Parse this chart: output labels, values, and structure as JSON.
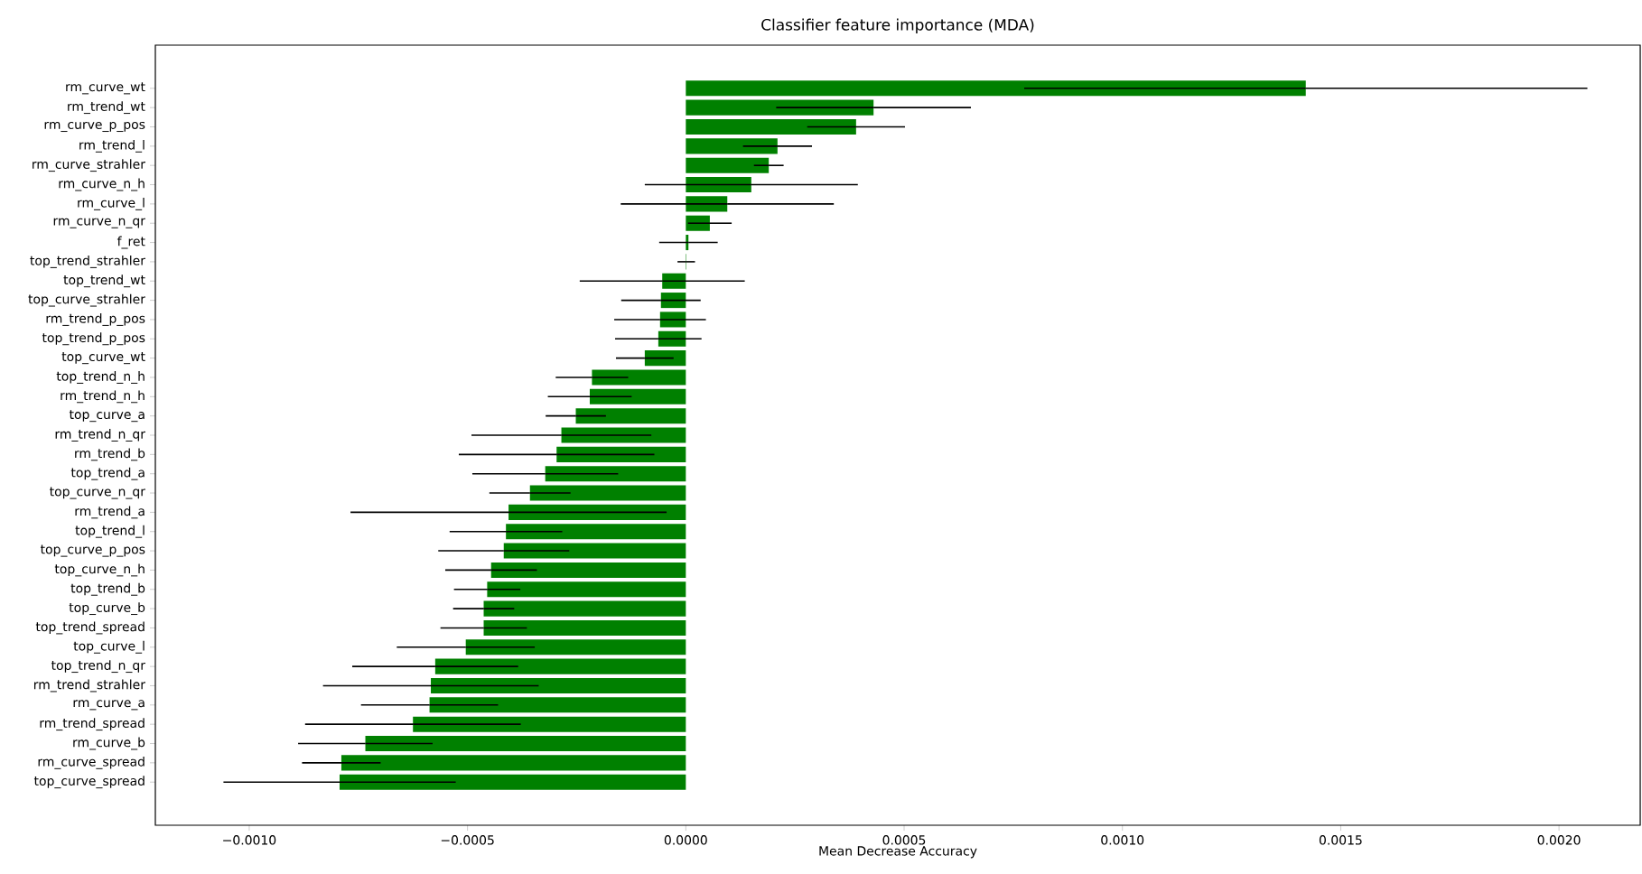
{
  "chart_data": {
    "type": "bar",
    "orientation": "horizontal",
    "title": "Classifier feature importance (MDA)",
    "xlabel": "Mean Decrease Accuracy",
    "categories": [
      "rm_curve_wt",
      "rm_trend_wt",
      "rm_curve_p_pos",
      "rm_trend_l",
      "rm_curve_strahler",
      "rm_curve_n_h",
      "rm_curve_l",
      "rm_curve_n_qr",
      "f_ret",
      "top_trend_strahler",
      "top_trend_wt",
      "top_curve_strahler",
      "rm_trend_p_pos",
      "top_trend_p_pos",
      "top_curve_wt",
      "top_trend_n_h",
      "rm_trend_n_h",
      "top_curve_a",
      "rm_trend_n_qr",
      "rm_trend_b",
      "top_trend_a",
      "top_curve_n_qr",
      "rm_trend_a",
      "top_trend_l",
      "top_curve_p_pos",
      "top_curve_n_h",
      "top_trend_b",
      "top_curve_b",
      "top_trend_spread",
      "top_curve_l",
      "top_trend_n_qr",
      "rm_trend_strahler",
      "rm_curve_a",
      "rm_trend_spread",
      "rm_curve_b",
      "rm_curve_spread",
      "top_curve_spread"
    ],
    "values": [
      0.00142,
      0.00043,
      0.00039,
      0.00021,
      0.00019,
      0.00015,
      9.5e-05,
      5.5e-05,
      6e-06,
      1e-06,
      -5.4e-05,
      -5.7e-05,
      -5.9e-05,
      -6.3e-05,
      -9.4e-05,
      -0.000215,
      -0.00022,
      -0.000252,
      -0.000285,
      -0.000296,
      -0.000322,
      -0.000357,
      -0.000406,
      -0.000412,
      -0.000417,
      -0.000446,
      -0.000455,
      -0.000463,
      -0.000463,
      -0.000504,
      -0.000574,
      -0.000584,
      -0.000587,
      -0.000625,
      -0.000734,
      -0.000789,
      -0.000793
    ],
    "errors": [
      0.000645,
      0.000223,
      0.000112,
      7.9e-05,
      3.4e-05,
      0.000244,
      0.000244,
      5e-05,
      6.7e-05,
      2e-05,
      0.000189,
      9.1e-05,
      0.000105,
      9.9e-05,
      6.6e-05,
      8.3e-05,
      9.6e-05,
      6.9e-05,
      0.000206,
      0.000224,
      0.000167,
      9.3e-05,
      0.000362,
      0.000129,
      0.00015,
      0.000105,
      7.6e-05,
      7e-05,
      9.9e-05,
      0.000158,
      0.00019,
      0.000247,
      0.000157,
      0.000247,
      0.000154,
      9e-05,
      0.000266
    ],
    "color": "#008000",
    "xlim": [
      -0.001215,
      0.002186
    ],
    "xticks": [
      {
        "value": -0.001,
        "label": "−0.0010"
      },
      {
        "value": -0.0005,
        "label": "−0.0005"
      },
      {
        "value": 0,
        "label": "0.0000"
      },
      {
        "value": 0.0005,
        "label": "0.0005"
      },
      {
        "value": 0.001,
        "label": "0.0010"
      },
      {
        "value": 0.0015,
        "label": "0.0015"
      },
      {
        "value": 0.002,
        "label": "0.0020"
      }
    ]
  }
}
